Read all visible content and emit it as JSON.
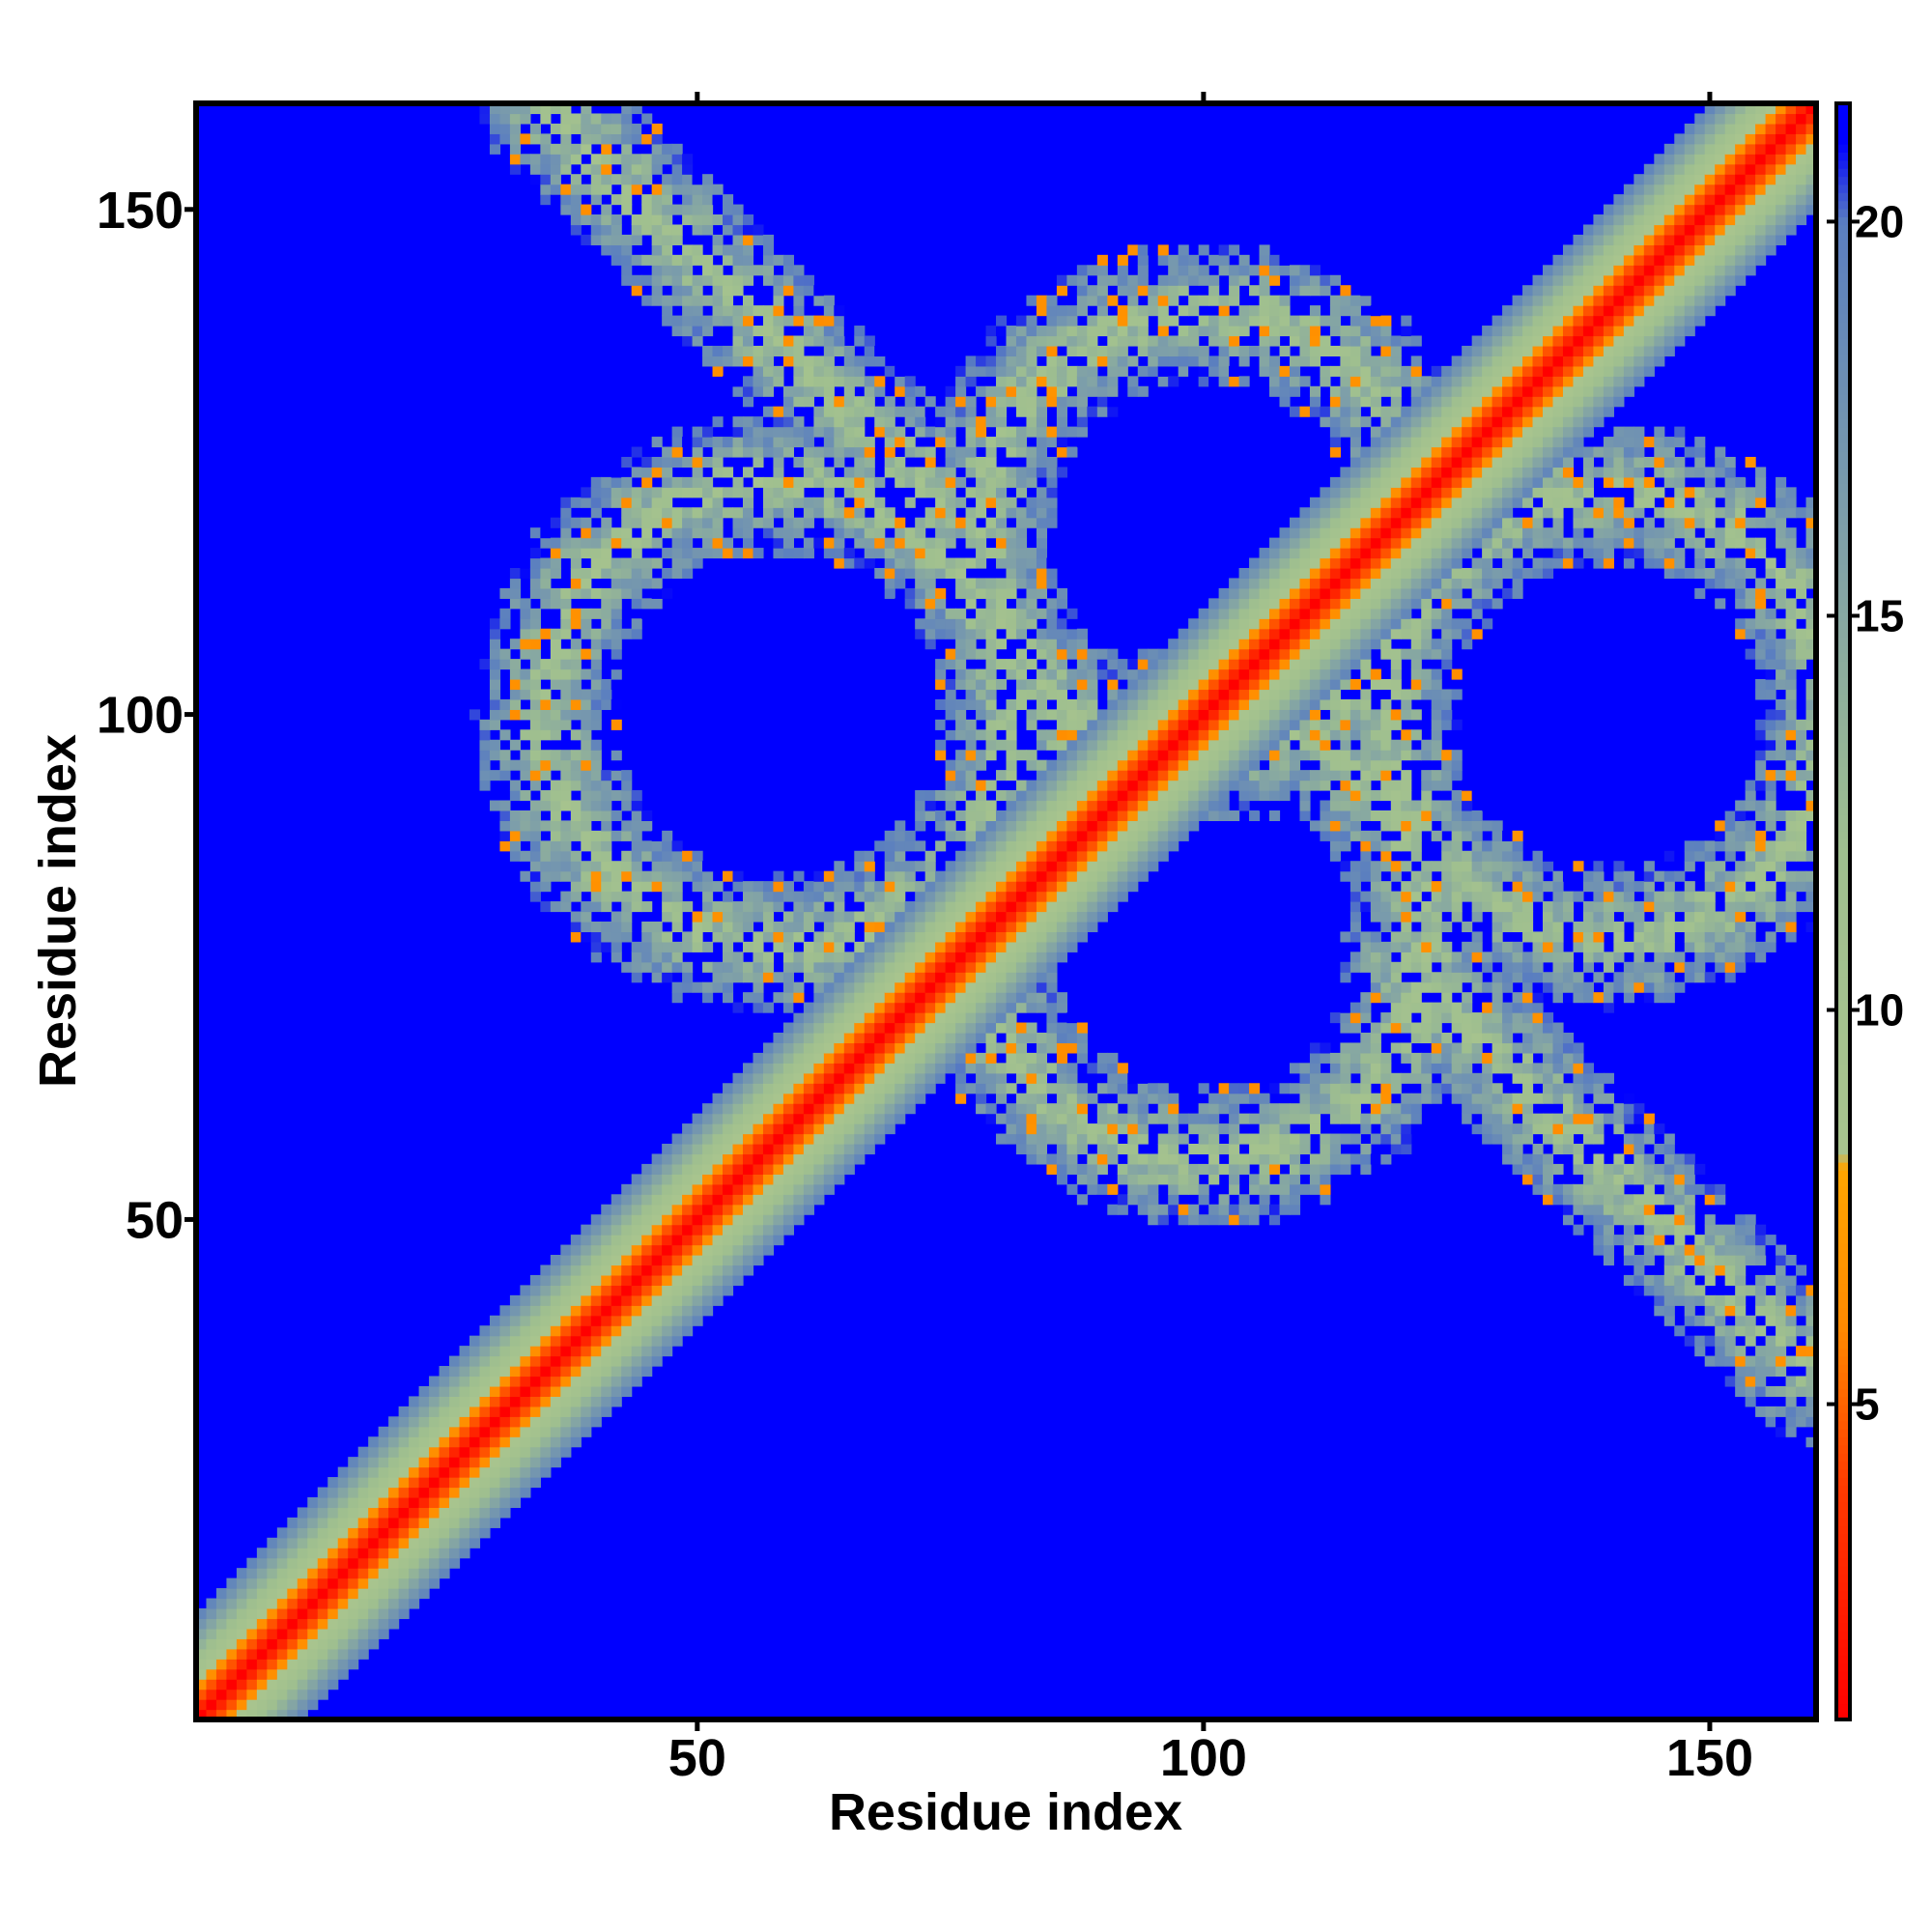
{
  "chart_data": {
    "type": "heatmap",
    "title": "",
    "xlabel": "Residue index",
    "ylabel": "Residue index",
    "xlim": [
      1,
      160
    ],
    "ylim": [
      1,
      160
    ],
    "x_ticks": [
      50,
      100,
      150
    ],
    "y_ticks": [
      50,
      100,
      150
    ],
    "colorbar": {
      "range": [
        1,
        21.5
      ],
      "ticks": [
        5,
        10,
        15,
        20
      ],
      "placement": "right",
      "stops": [
        {
          "value": 1,
          "color": "#ff0000"
        },
        {
          "value": 4,
          "color": "#ff3c00"
        },
        {
          "value": 6,
          "color": "#ff8a00"
        },
        {
          "value": 8,
          "color": "#ffa500"
        },
        {
          "value": 8.2,
          "color": "#a8c48e"
        },
        {
          "value": 12,
          "color": "#9fbf8f"
        },
        {
          "value": 16,
          "color": "#7fa0a8"
        },
        {
          "value": 20,
          "color": "#5a7ec0"
        },
        {
          "value": 21,
          "color": "#0000ff"
        }
      ]
    },
    "background_value": 21.5,
    "structure": {
      "description_values_in_residue_index_units": true,
      "main_diagonal": {
        "halfwidth": 10
      },
      "antidiagonal_bands": [
        {
          "from": [
            35,
            160
          ],
          "to": [
            75,
            120
          ]
        },
        {
          "from": [
            120,
            75
          ],
          "to": [
            160,
            35
          ]
        }
      ],
      "contact_rings": [
        {
          "center": [
            58,
            100
          ],
          "radius": 23
        },
        {
          "center": [
            100,
            118
          ],
          "radius": 22
        },
        {
          "center": [
            140,
            100
          ],
          "radius": 22
        },
        {
          "center": [
            100,
            78
          ],
          "radius": 22
        }
      ]
    }
  }
}
